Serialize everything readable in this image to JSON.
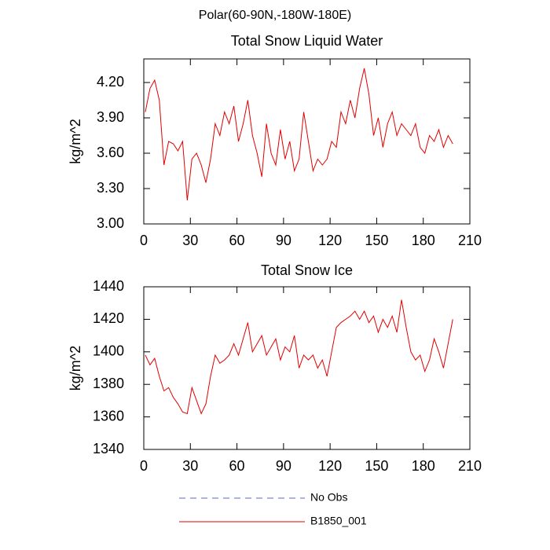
{
  "title": "Polar(60-90N,-180W-180E)",
  "obs": {
    "name": "No Obs",
    "color": "#5a6acf",
    "line_style": "dashed"
  },
  "chart_data": [
    {
      "type": "line",
      "title": "Total Snow Liquid Water",
      "ylabel": "kg/m^2",
      "x": [
        1,
        4,
        7,
        10,
        13,
        16,
        19,
        22,
        25,
        28,
        31,
        34,
        37,
        40,
        43,
        46,
        49,
        52,
        55,
        58,
        61,
        64,
        67,
        70,
        73,
        76,
        79,
        82,
        85,
        88,
        91,
        94,
        97,
        100,
        103,
        106,
        109,
        112,
        115,
        118,
        121,
        124,
        127,
        130,
        133,
        136,
        139,
        142,
        145,
        148,
        151,
        154,
        157,
        160,
        163,
        166,
        169,
        172,
        175,
        178,
        181,
        184,
        187,
        190,
        193,
        196,
        199
      ],
      "series": [
        {
          "name": "B1850_001",
          "color": "#e00000",
          "line_style": "solid",
          "values": [
            3.95,
            4.15,
            4.22,
            4.05,
            3.5,
            3.7,
            3.68,
            3.62,
            3.7,
            3.2,
            3.55,
            3.6,
            3.5,
            3.35,
            3.55,
            3.85,
            3.75,
            3.95,
            3.85,
            4.0,
            3.7,
            3.85,
            4.05,
            3.75,
            3.6,
            3.4,
            3.85,
            3.6,
            3.5,
            3.8,
            3.55,
            3.7,
            3.45,
            3.55,
            3.95,
            3.7,
            3.45,
            3.55,
            3.5,
            3.55,
            3.7,
            3.65,
            3.95,
            3.85,
            4.05,
            3.9,
            4.15,
            4.32,
            4.1,
            3.75,
            3.9,
            3.65,
            3.85,
            3.95,
            3.75,
            3.85,
            3.8,
            3.75,
            3.85,
            3.65,
            3.6,
            3.75,
            3.7,
            3.8,
            3.65,
            3.75,
            3.68
          ]
        }
      ],
      "xlim": [
        0,
        210
      ],
      "xticks": [
        0,
        30,
        60,
        90,
        120,
        150,
        180,
        210
      ],
      "ylim": [
        3.0,
        4.4
      ],
      "yticks": [
        {
          "value": 3.0,
          "label": "3.00"
        },
        {
          "value": 3.3,
          "label": "3.30"
        },
        {
          "value": 3.6,
          "label": "3.60"
        },
        {
          "value": 3.9,
          "label": "3.90"
        },
        {
          "value": 4.2,
          "label": "4.20"
        }
      ]
    },
    {
      "type": "line",
      "title": "Total Snow Ice",
      "ylabel": "kg/m^2",
      "x": [
        1,
        4,
        7,
        10,
        13,
        16,
        19,
        22,
        25,
        28,
        31,
        34,
        37,
        40,
        43,
        46,
        49,
        52,
        55,
        58,
        61,
        64,
        67,
        70,
        73,
        76,
        79,
        82,
        85,
        88,
        91,
        94,
        97,
        100,
        103,
        106,
        109,
        112,
        115,
        118,
        121,
        124,
        127,
        130,
        133,
        136,
        139,
        142,
        145,
        148,
        151,
        154,
        157,
        160,
        163,
        166,
        169,
        172,
        175,
        178,
        181,
        184,
        187,
        190,
        193,
        196,
        199
      ],
      "series": [
        {
          "name": "B1850_001",
          "color": "#e00000",
          "line_style": "solid",
          "values": [
            1398,
            1392,
            1396,
            1385,
            1376,
            1378,
            1372,
            1368,
            1363,
            1362,
            1378,
            1370,
            1362,
            1368,
            1385,
            1398,
            1393,
            1395,
            1398,
            1405,
            1398,
            1408,
            1418,
            1400,
            1405,
            1410,
            1398,
            1403,
            1408,
            1395,
            1403,
            1400,
            1410,
            1390,
            1398,
            1395,
            1398,
            1390,
            1395,
            1385,
            1400,
            1415,
            1418,
            1420,
            1422,
            1425,
            1420,
            1425,
            1418,
            1422,
            1412,
            1420,
            1415,
            1422,
            1412,
            1432,
            1415,
            1400,
            1395,
            1398,
            1388,
            1395,
            1408,
            1400,
            1390,
            1405,
            1420
          ]
        }
      ],
      "xlim": [
        0,
        210
      ],
      "xticks": [
        0,
        30,
        60,
        90,
        120,
        150,
        180,
        210
      ],
      "ylim": [
        1340,
        1440
      ],
      "yticks": [
        1340,
        1360,
        1380,
        1400,
        1420,
        1440
      ]
    }
  ]
}
